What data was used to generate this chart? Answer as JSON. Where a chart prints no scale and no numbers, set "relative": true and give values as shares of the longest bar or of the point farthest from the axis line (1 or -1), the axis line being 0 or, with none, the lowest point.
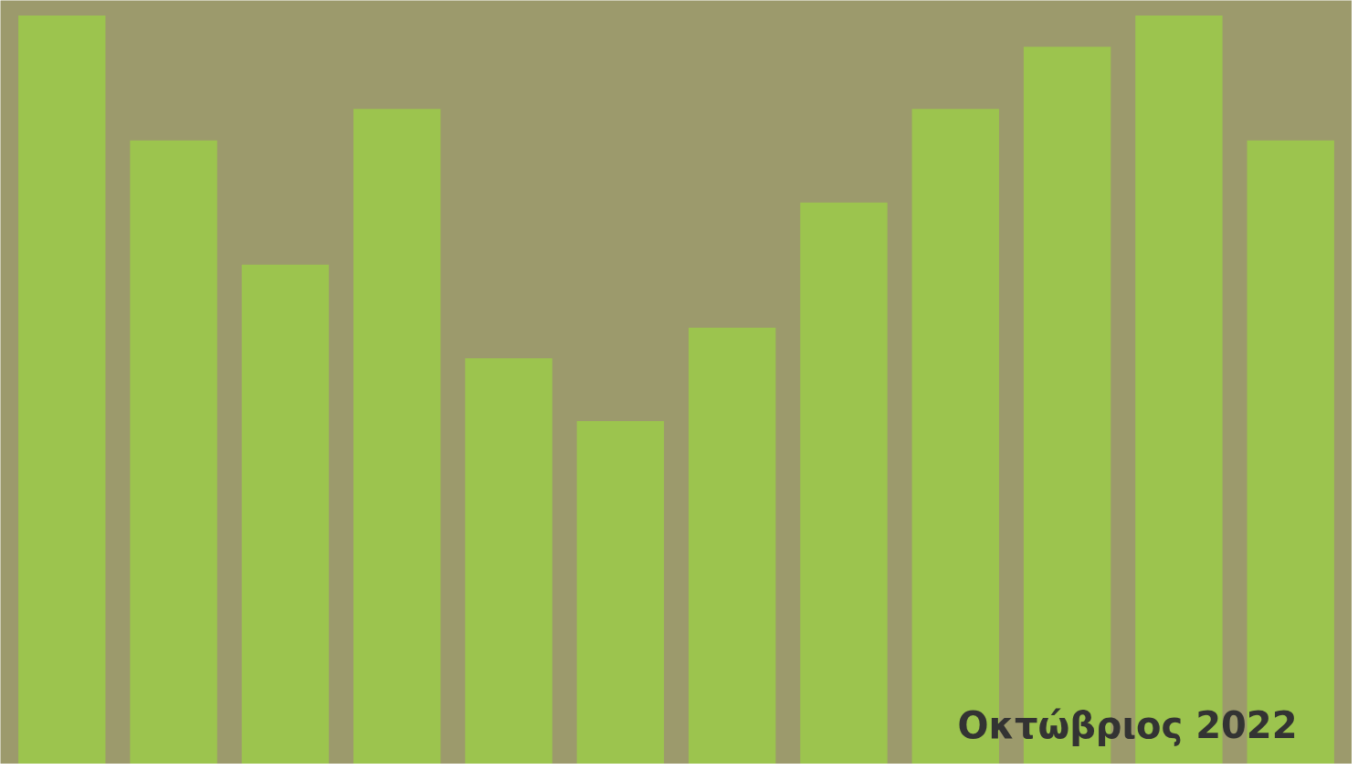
{
  "chart_data": {
    "type": "bar",
    "relative": true,
    "categories": [
      null,
      null,
      null,
      null,
      null,
      null,
      null,
      null,
      null,
      null,
      null,
      null
    ],
    "values": [
      1,
      0.833,
      0.667,
      0.875,
      0.542,
      0.458,
      0.583,
      0.75,
      0.875,
      0.958,
      1,
      0.833
    ],
    "color": "#9cc44e",
    "annotations": [
      "Οκτώβριος 2022"
    ]
  }
}
